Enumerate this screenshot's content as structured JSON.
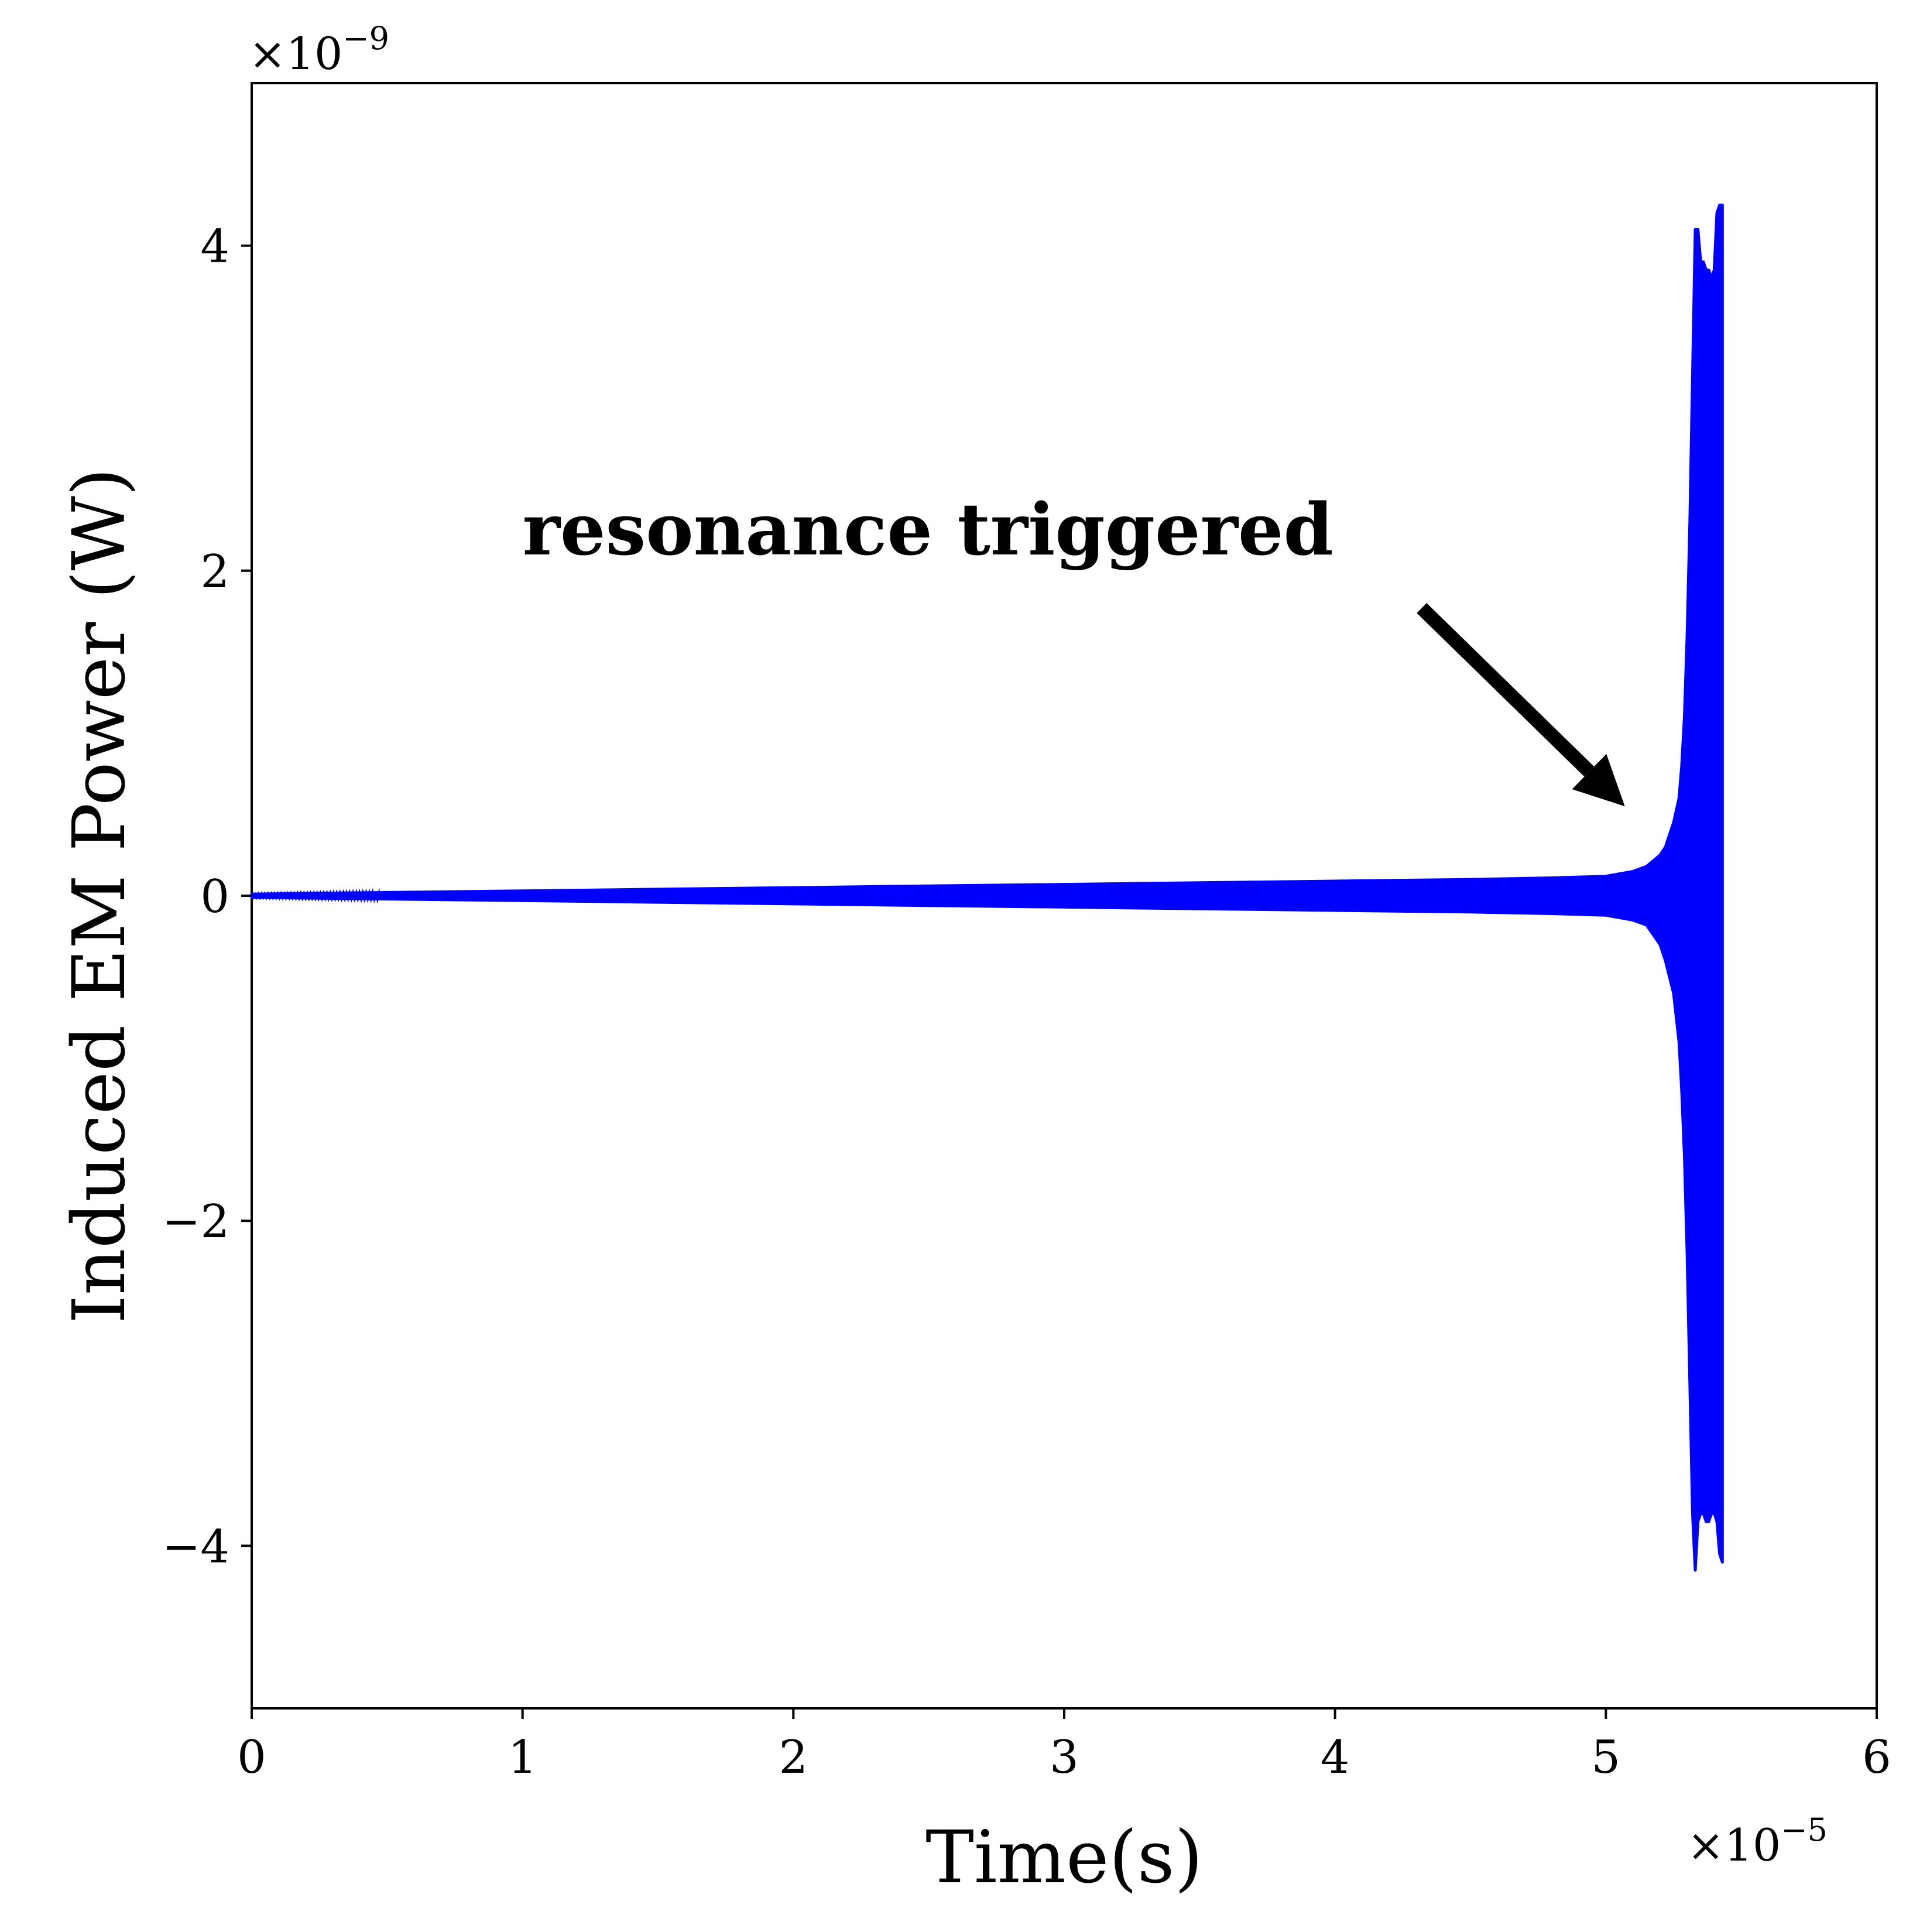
{
  "chart_data": {
    "type": "line",
    "title": "",
    "xlabel": "Time(s)",
    "ylabel": "Induced EM Power (W)",
    "x_multiplier_label": {
      "base": "×10",
      "exponent": "−5"
    },
    "y_multiplier_label": {
      "base": "×10",
      "exponent": "−9"
    },
    "xlim": [
      0,
      6
    ],
    "ylim": [
      -5,
      5
    ],
    "x_ticks": [
      0,
      1,
      2,
      3,
      4,
      5,
      6
    ],
    "x_tick_labels": [
      "0",
      "1",
      "2",
      "3",
      "4",
      "5",
      "6"
    ],
    "y_ticks": [
      -4,
      -2,
      0,
      2,
      4
    ],
    "y_tick_labels": [
      "−4",
      "−2",
      "0",
      "2",
      "4"
    ],
    "grid": false,
    "series": [
      {
        "color": "#0000ff",
        "style": "dense oscillation envelope",
        "envelope": {
          "x": [
            0,
            0.5,
            1.0,
            1.5,
            2.0,
            2.5,
            3.0,
            3.5,
            4.0,
            4.5,
            4.8,
            5.0,
            5.1,
            5.15,
            5.2,
            5.22,
            5.25,
            5.27,
            5.28,
            5.29,
            5.3,
            5.31,
            5.32,
            5.33,
            5.34,
            5.35,
            5.36,
            5.37,
            5.38,
            5.39,
            5.4,
            5.41,
            5.42,
            5.43
          ],
          "upper": [
            0.01,
            0.02,
            0.03,
            0.04,
            0.05,
            0.06,
            0.07,
            0.08,
            0.09,
            0.1,
            0.11,
            0.12,
            0.15,
            0.18,
            0.25,
            0.3,
            0.45,
            0.6,
            0.8,
            1.1,
            1.6,
            2.3,
            3.2,
            4.1,
            4.1,
            3.9,
            3.9,
            3.85,
            3.85,
            3.8,
            3.85,
            4.2,
            4.25,
            4.25
          ],
          "lower": [
            -0.01,
            -0.02,
            -0.03,
            -0.04,
            -0.05,
            -0.06,
            -0.07,
            -0.08,
            -0.09,
            -0.1,
            -0.11,
            -0.12,
            -0.15,
            -0.18,
            -0.3,
            -0.4,
            -0.6,
            -0.9,
            -1.2,
            -1.6,
            -2.2,
            -3.0,
            -3.8,
            -4.15,
            -3.85,
            -3.8,
            -3.8,
            -3.85,
            -3.85,
            -3.8,
            -3.8,
            -3.85,
            -4.05,
            -4.1
          ]
        }
      }
    ],
    "annotations": [
      {
        "text": "resonance triggered",
        "text_x": 1.0,
        "text_y": 2.1,
        "arrow_from": [
          4.32,
          1.77
        ],
        "arrow_to": [
          5.07,
          0.55
        ]
      }
    ]
  }
}
